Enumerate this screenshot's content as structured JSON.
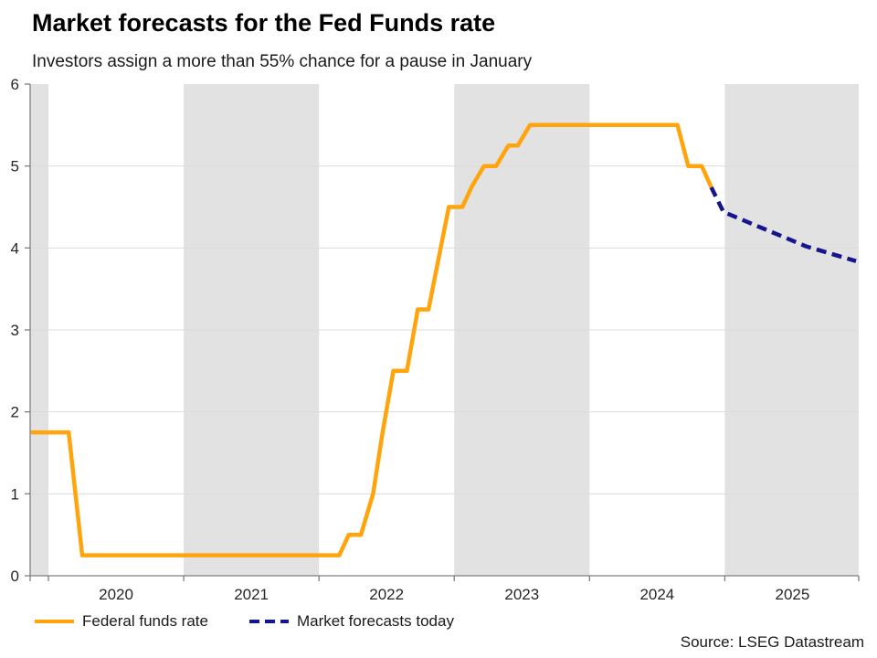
{
  "header": {
    "title": "Market forecasts for the Fed Funds rate",
    "subtitle": "Investors assign a more than 55% chance for a pause in January"
  },
  "source": "Source: LSEG Datastream",
  "legend": [
    {
      "label": "Federal funds rate",
      "color": "#FFA40D",
      "style": "solid"
    },
    {
      "label": "Market forecasts today",
      "color": "#15158F",
      "style": "dashed"
    }
  ],
  "chart_data": {
    "type": "line",
    "title": "Market forecasts for the Fed Funds rate",
    "subtitle": "Investors assign a more than 55% chance for a pause in January",
    "xlabel": "",
    "ylabel": "",
    "xlim": [
      2019.865,
      2025.99
    ],
    "ylim": [
      0,
      6
    ],
    "yticks": [
      0,
      1,
      2,
      3,
      4,
      5,
      6
    ],
    "xtick_years": [
      2020,
      2021,
      2022,
      2023,
      2024,
      2025
    ],
    "shaded_bands": [
      [
        2019.865,
        2020
      ],
      [
        2021,
        2022
      ],
      [
        2023,
        2024
      ],
      [
        2025,
        2025.99
      ]
    ],
    "grid": "horizontal",
    "legend_position": "bottom-left",
    "colors": {
      "band": "#e2e2e2",
      "gridline": "#dcdcdc",
      "axis": "#7f7f7f",
      "tick_label": "#262626"
    },
    "series": [
      {
        "name": "Federal funds rate",
        "color": "#FFA40D",
        "style": "solid",
        "points": [
          [
            2019.87,
            1.75
          ],
          [
            2020.15,
            1.75
          ],
          [
            2020.25,
            0.25
          ],
          [
            2022.15,
            0.25
          ],
          [
            2022.22,
            0.5
          ],
          [
            2022.31,
            0.5
          ],
          [
            2022.4,
            1.0
          ],
          [
            2022.47,
            1.75
          ],
          [
            2022.55,
            2.5
          ],
          [
            2022.65,
            2.5
          ],
          [
            2022.73,
            3.25
          ],
          [
            2022.81,
            3.25
          ],
          [
            2022.9,
            4.0
          ],
          [
            2022.96,
            4.5
          ],
          [
            2023.06,
            4.5
          ],
          [
            2023.13,
            4.75
          ],
          [
            2023.22,
            5.0
          ],
          [
            2023.31,
            5.0
          ],
          [
            2023.4,
            5.25
          ],
          [
            2023.47,
            5.25
          ],
          [
            2023.56,
            5.5
          ],
          [
            2024.65,
            5.5
          ],
          [
            2024.73,
            5.0
          ],
          [
            2024.83,
            5.0
          ],
          [
            2024.9,
            4.74
          ]
        ]
      },
      {
        "name": "Market forecasts today",
        "color": "#15158F",
        "style": "dashed",
        "points": [
          [
            2024.9,
            4.74
          ],
          [
            2024.99,
            4.44
          ],
          [
            2025.6,
            4.02
          ],
          [
            2025.97,
            3.84
          ]
        ]
      }
    ]
  }
}
